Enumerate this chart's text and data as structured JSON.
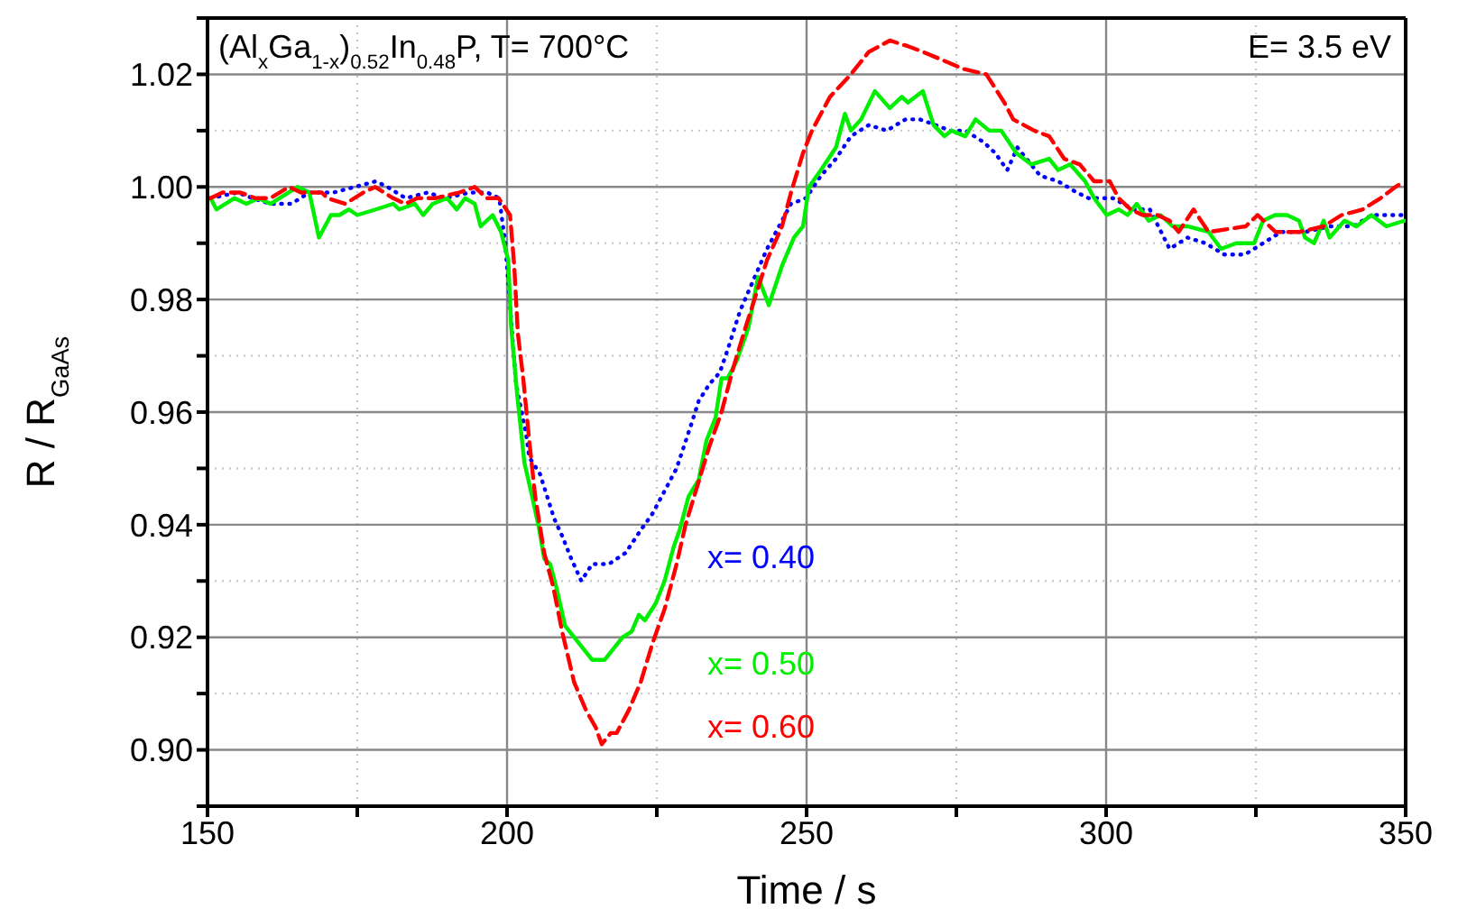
{
  "chart_data": {
    "type": "line",
    "title": "(Al$_{x}$Ga$_{1-x}$)$_{0.52}$In$_{0.48}$P, T= 700°C",
    "xlabel": "Time / s",
    "ylabel": "R / R$_{GaAs}$",
    "annotations": [
      "E= 3.5 eV"
    ],
    "xlim": [
      150,
      350
    ],
    "ylim": [
      0.89,
      1.03
    ],
    "xticks": [
      150,
      {
        "value": 175,
        "label": null
      },
      200,
      {
        "value": 225,
        "label": null
      },
      250,
      {
        "value": 275,
        "label": null
      },
      300,
      {
        "value": 325,
        "label": null
      },
      350
    ],
    "yticks": [
      {
        "value": 0.89,
        "label": null
      },
      "0.90",
      {
        "value": 0.91,
        "label": null
      },
      {
        "value": 0.92,
        "label": "0.92"
      },
      {
        "value": 0.93,
        "label": null
      },
      {
        "value": 0.94,
        "label": "0.94"
      },
      {
        "value": 0.95,
        "label": null
      },
      {
        "value": 0.96,
        "label": "0.96"
      },
      {
        "value": 0.97,
        "label": null
      },
      {
        "value": 0.98,
        "label": "0.98"
      },
      {
        "value": 0.99,
        "label": null
      },
      {
        "value": 1.0,
        "label": "1.00"
      },
      {
        "value": 1.01,
        "label": null
      },
      {
        "value": 1.02,
        "label": "1.02"
      },
      {
        "value": 1.03,
        "label": null
      }
    ],
    "grid": true,
    "marker": "none",
    "series": [
      {
        "name": "x= 0.40",
        "color": "#0000ff",
        "line_style": "dotted",
        "x": [
          150.5,
          155,
          157.5,
          160.5,
          164,
          167,
          171,
          174.6,
          178.1,
          180,
          183.1,
          186.7,
          189.7,
          193.7,
          196.7,
          198.7,
          199.7,
          201.5,
          203.2,
          203.7,
          205.5,
          207.9,
          209.2,
          210.7,
          212.4,
          214.2,
          217,
          219.8,
          222.3,
          224.3,
          226.3,
          228.3,
          230.8,
          232,
          233.8,
          235.5,
          236.8,
          238.9,
          243.4,
          247.4,
          249.9,
          252.4,
          254.9,
          257.4,
          260.4,
          263.4,
          266.5,
          268.9,
          271.5,
          274,
          276.5,
          279.5,
          281.5,
          283.5,
          285.2,
          289,
          292,
          295.1,
          297.1,
          301.1,
          304.6,
          307.3,
          310.6,
          313.6,
          316.6,
          319.7,
          323.2,
          326.2,
          329.2,
          333.2,
          337.3,
          341.3,
          344.3,
          346.8,
          349.3
        ],
        "values": [
          0.998,
          0.999,
          0.998,
          0.997,
          0.997,
          0.999,
          0.999,
          1.0,
          1.001,
          1.0,
          0.998,
          0.999,
          0.998,
          0.999,
          0.999,
          0.998,
          0.99,
          0.965,
          0.956,
          0.952,
          0.949,
          0.941,
          0.938,
          0.934,
          0.93,
          0.933,
          0.933,
          0.935,
          0.939,
          0.942,
          0.946,
          0.95,
          0.958,
          0.962,
          0.965,
          0.967,
          0.971,
          0.978,
          0.989,
          0.997,
          0.998,
          1.002,
          1.005,
          1.009,
          1.011,
          1.01,
          1.012,
          1.012,
          1.011,
          1.01,
          1.01,
          1.008,
          1.006,
          1.003,
          1.007,
          1.002,
          1.001,
          0.999,
          0.998,
          0.998,
          0.996,
          0.996,
          0.989,
          0.991,
          0.99,
          0.988,
          0.988,
          0.99,
          0.992,
          0.992,
          0.993,
          0.993,
          0.995,
          0.995,
          0.995
        ]
      },
      {
        "name": "x= 0.50",
        "color": "#00ee00",
        "line_style": "solid",
        "x": [
          150.5,
          151.5,
          154.5,
          156.5,
          158.5,
          160.5,
          162,
          165,
          167,
          168.6,
          170.6,
          172,
          173.6,
          175,
          178.1,
          181,
          182,
          184.6,
          186,
          187.6,
          190,
          191.6,
          193,
          194.6,
          195.6,
          197.6,
          199,
          200.2,
          200.7,
          201.7,
          202.9,
          204.2,
          205.4,
          206.2,
          207.2,
          208.2,
          209.7,
          211.2,
          212.7,
          214.2,
          216.3,
          217.8,
          219.3,
          220.8,
          222,
          223,
          224.8,
          226.3,
          227.8,
          228.8,
          230.3,
          232,
          233.3,
          234.8,
          235.8,
          236.8,
          238.3,
          240.3,
          241.9,
          243.7,
          245.9,
          247.9,
          249.4,
          250.4,
          252.4,
          254.9,
          256.4,
          257.4,
          259.1,
          261.4,
          263.9,
          265.9,
          266.9,
          269.4,
          271.2,
          273,
          274.2,
          276.5,
          278.2,
          280.5,
          282.5,
          285,
          287.5,
          290.5,
          292,
          294,
          296.5,
          298,
          300.1,
          302.1,
          303.6,
          305.1,
          307.1,
          309.1,
          311.1,
          313.6,
          317.1,
          319.2,
          321.7,
          324.7,
          326.2,
          328.2,
          330.2,
          332.2,
          333.2,
          334.7,
          336.3,
          337.3,
          339.8,
          341.8,
          344.3,
          346.8,
          349.8
        ],
        "values": [
          0.998,
          0.996,
          0.998,
          0.997,
          0.998,
          0.997,
          0.998,
          1.0,
          0.999,
          0.991,
          0.995,
          0.995,
          0.996,
          0.995,
          0.996,
          0.997,
          0.996,
          0.997,
          0.995,
          0.997,
          0.998,
          0.996,
          0.998,
          0.997,
          0.993,
          0.995,
          0.992,
          0.987,
          0.975,
          0.963,
          0.951,
          0.945,
          0.939,
          0.934,
          0.933,
          0.929,
          0.922,
          0.92,
          0.918,
          0.916,
          0.916,
          0.918,
          0.92,
          0.921,
          0.924,
          0.923,
          0.926,
          0.93,
          0.936,
          0.939,
          0.945,
          0.948,
          0.955,
          0.959,
          0.966,
          0.966,
          0.969,
          0.975,
          0.984,
          0.979,
          0.986,
          0.991,
          0.993,
          1.0,
          1.003,
          1.007,
          1.013,
          1.01,
          1.012,
          1.017,
          1.014,
          1.016,
          1.015,
          1.017,
          1.011,
          1.009,
          1.01,
          1.009,
          1.012,
          1.01,
          1.01,
          1.006,
          1.004,
          1.005,
          1.003,
          1.004,
          1.001,
          0.998,
          0.995,
          0.996,
          0.995,
          0.997,
          0.994,
          0.995,
          0.993,
          0.993,
          0.992,
          0.989,
          0.99,
          0.99,
          0.994,
          0.995,
          0.995,
          0.994,
          0.991,
          0.99,
          0.994,
          0.991,
          0.994,
          0.993,
          0.995,
          0.993,
          0.994
        ]
      },
      {
        "name": "x= 0.60",
        "color": "#ff0000",
        "line_style": "dashed",
        "x": [
          150.5,
          152.5,
          155.5,
          158,
          160.5,
          163.6,
          165.6,
          169.1,
          170,
          173,
          176,
          178,
          181,
          183,
          185,
          188,
          192,
          194.6,
          196.6,
          198.6,
          200.5,
          201.2,
          201.8,
          202.7,
          203.7,
          204.7,
          206.2,
          207.7,
          209.2,
          211.2,
          213.2,
          214.8,
          215.8,
          217.3,
          218.3,
          220.3,
          222.3,
          224.3,
          226.3,
          228.3,
          229.8,
          231.8,
          233.8,
          235.8,
          237.8,
          239.8,
          243.4,
          245.9,
          247.4,
          249.4,
          250.9,
          253.9,
          257.4,
          260.4,
          263.9,
          266.9,
          269.4,
          273.9,
          276,
          280,
          283,
          284.5,
          288,
          290.5,
          293,
          295.6,
          298,
          300.6,
          302.1,
          304.1,
          306.1,
          308.6,
          310.6,
          312.1,
          314.6,
          317.1,
          323.3,
          325.3,
          328.3,
          332.3,
          336.3,
          339.3,
          342.8,
          345.8,
          348.3,
          349.8
        ],
        "values": [
          0.998,
          0.999,
          0.999,
          0.998,
          0.998,
          1.0,
          0.999,
          0.999,
          0.998,
          0.997,
          0.999,
          1.0,
          0.998,
          0.997,
          0.998,
          0.998,
          0.999,
          1.0,
          0.998,
          0.998,
          0.995,
          0.986,
          0.974,
          0.966,
          0.955,
          0.945,
          0.935,
          0.929,
          0.921,
          0.912,
          0.907,
          0.904,
          0.901,
          0.903,
          0.903,
          0.907,
          0.912,
          0.919,
          0.925,
          0.933,
          0.94,
          0.947,
          0.954,
          0.96,
          0.968,
          0.975,
          0.987,
          0.993,
          0.999,
          1.006,
          1.01,
          1.016,
          1.02,
          1.024,
          1.026,
          1.025,
          1.024,
          1.022,
          1.021,
          1.02,
          1.015,
          1.012,
          1.01,
          1.009,
          1.005,
          1.004,
          1.001,
          1.001,
          0.998,
          0.996,
          0.995,
          0.995,
          0.994,
          0.992,
          0.996,
          0.992,
          0.993,
          0.995,
          0.992,
          0.992,
          0.993,
          0.995,
          0.996,
          0.998,
          1.0,
          1.001
        ]
      }
    ]
  }
}
